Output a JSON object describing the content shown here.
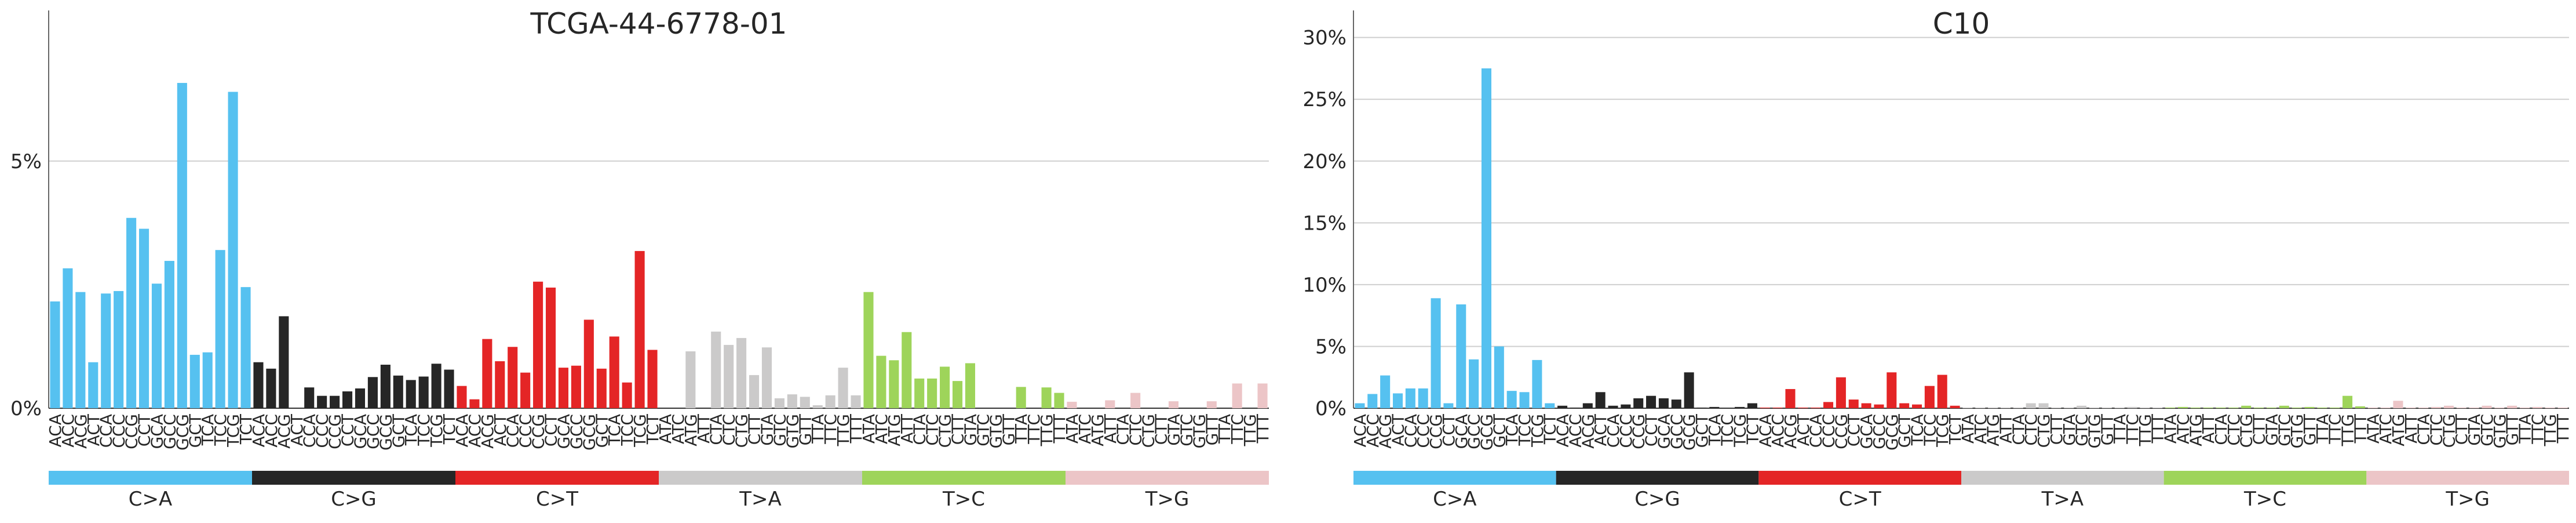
{
  "chart_data": [
    {
      "type": "bar",
      "title": "TCGA-44-6778-01",
      "ylim": [
        0,
        0.08
      ],
      "yticks": [
        0,
        0.05
      ],
      "ytick_labels": [
        "0%",
        "5%"
      ],
      "grid": true,
      "categories": [
        "ACA",
        "ACC",
        "ACG",
        "ACT",
        "CCA",
        "CCC",
        "CCG",
        "CCT",
        "GCA",
        "GCC",
        "GCG",
        "GCT",
        "TCA",
        "TCC",
        "TCG",
        "TCT",
        "ACA",
        "ACC",
        "ACG",
        "ACT",
        "CCA",
        "CCC",
        "CCG",
        "CCT",
        "GCA",
        "GCC",
        "GCG",
        "GCT",
        "TCA",
        "TCC",
        "TCG",
        "TCT",
        "ACA",
        "ACC",
        "ACG",
        "ACT",
        "CCA",
        "CCC",
        "CCG",
        "CCT",
        "GCA",
        "GCC",
        "GCG",
        "GCT",
        "TCA",
        "TCC",
        "TCG",
        "TCT",
        "ATA",
        "ATC",
        "ATG",
        "ATT",
        "CTA",
        "CTC",
        "CTG",
        "CTT",
        "GTA",
        "GTC",
        "GTG",
        "GTT",
        "TTA",
        "TTC",
        "TTG",
        "TTT",
        "ATA",
        "ATC",
        "ATG",
        "ATT",
        "CTA",
        "CTC",
        "CTG",
        "CTT",
        "GTA",
        "GTC",
        "GTG",
        "GTT",
        "TTA",
        "TTC",
        "TTG",
        "TTT",
        "ATA",
        "ATC",
        "ATG",
        "ATT",
        "CTA",
        "CTC",
        "CTG",
        "CTT",
        "GTA",
        "GTC",
        "GTG",
        "GTT",
        "TTA",
        "TTC",
        "TTG",
        "TTT"
      ],
      "values": [
        0.0216,
        0.0283,
        0.0235,
        0.0093,
        0.0232,
        0.0237,
        0.0385,
        0.0363,
        0.0252,
        0.0298,
        0.0658,
        0.0108,
        0.0113,
        0.032,
        0.064,
        0.0245,
        0.0093,
        0.008,
        0.0186,
        0,
        0.0042,
        0.0025,
        0.0025,
        0.0034,
        0.004,
        0.0063,
        0.0088,
        0.0066,
        0.0057,
        0.0064,
        0.009,
        0.0078,
        0.0045,
        0.0018,
        0.014,
        0.0095,
        0.0124,
        0.0072,
        0.0256,
        0.0244,
        0.0082,
        0.0086,
        0.0179,
        0.008,
        0.0145,
        0.0052,
        0.0318,
        0.0118,
        0,
        0,
        0.0115,
        0,
        0.0155,
        0.0128,
        0.0142,
        0.0067,
        0.0123,
        0.002,
        0.0028,
        0.0023,
        0.0006,
        0.0026,
        0.0082,
        0.0026,
        0.0235,
        0.0106,
        0.0097,
        0.0154,
        0.006,
        0.006,
        0.0084,
        0.0055,
        0.0091,
        0,
        0,
        0,
        0.0043,
        0,
        0.0042,
        0.0031,
        0.0013,
        0,
        0,
        0.0016,
        0,
        0.0031,
        0,
        0,
        0.0014,
        0,
        0,
        0.0014,
        0,
        0.005,
        0,
        0.005
      ],
      "groups": [
        {
          "label": "C>A",
          "color": "#56c1f0"
        },
        {
          "label": "C>G",
          "color": "#262626"
        },
        {
          "label": "C>T",
          "color": "#e42526"
        },
        {
          "label": "T>A",
          "color": "#cbcaca"
        },
        {
          "label": "T>C",
          "color": "#9ed45a"
        },
        {
          "label": "T>G",
          "color": "#ecc5c7"
        }
      ]
    },
    {
      "type": "bar",
      "title": "C10",
      "ylim": [
        0,
        0.32
      ],
      "yticks": [
        0,
        0.05,
        0.1,
        0.15,
        0.2,
        0.25,
        0.3
      ],
      "ytick_labels": [
        "0%",
        "5%",
        "10%",
        "15%",
        "20%",
        "25%",
        "30%"
      ],
      "grid": true,
      "categories": [
        "ACA",
        "ACC",
        "ACG",
        "ACT",
        "CCA",
        "CCC",
        "CCG",
        "CCT",
        "GCA",
        "GCC",
        "GCG",
        "GCT",
        "TCA",
        "TCC",
        "TCG",
        "TCT",
        "ACA",
        "ACC",
        "ACG",
        "ACT",
        "CCA",
        "CCC",
        "CCG",
        "CCT",
        "GCA",
        "GCC",
        "GCG",
        "GCT",
        "TCA",
        "TCC",
        "TCG",
        "TCT",
        "ACA",
        "ACC",
        "ACG",
        "ACT",
        "CCA",
        "CCC",
        "CCG",
        "CCT",
        "GCA",
        "GCC",
        "GCG",
        "GCT",
        "TCA",
        "TCC",
        "TCG",
        "TCT",
        "ATA",
        "ATC",
        "ATG",
        "ATT",
        "CTA",
        "CTC",
        "CTG",
        "CTT",
        "GTA",
        "GTC",
        "GTG",
        "GTT",
        "TTA",
        "TTC",
        "TTG",
        "TTT",
        "ATA",
        "ATC",
        "ATG",
        "ATT",
        "CTA",
        "CTC",
        "CTG",
        "CTT",
        "GTA",
        "GTC",
        "GTG",
        "GTT",
        "TTA",
        "TTC",
        "TTG",
        "TTT",
        "ATA",
        "ATC",
        "ATG",
        "ATT",
        "CTA",
        "CTC",
        "CTG",
        "CTT",
        "GTA",
        "GTC",
        "GTG",
        "GTT",
        "TTA",
        "TTC",
        "TTG",
        "TTT"
      ],
      "values": [
        0.004,
        0.0115,
        0.0265,
        0.012,
        0.016,
        0.016,
        0.089,
        0.004,
        0.084,
        0.0395,
        0.275,
        0.05,
        0.014,
        0.013,
        0.039,
        0.004,
        0.002,
        0.0005,
        0.004,
        0.013,
        0.002,
        0.003,
        0.008,
        0.01,
        0.008,
        0.007,
        0.029,
        0.0005,
        0.001,
        0,
        0.001,
        0.004,
        0.0005,
        0.0005,
        0.0155,
        0.0005,
        0.0005,
        0.005,
        0.025,
        0.007,
        0.004,
        0.003,
        0.029,
        0.004,
        0.003,
        0.018,
        0.027,
        0.002,
        0.0005,
        0.0005,
        0.0005,
        0.0005,
        0.0005,
        0.004,
        0.004,
        0.0005,
        0.0005,
        0.002,
        0.0005,
        0.0005,
        0.0005,
        0.001,
        0.0005,
        0.0005,
        0.0005,
        0.001,
        0.0005,
        0.0005,
        0.0005,
        0.0005,
        0.002,
        0.0005,
        0.0005,
        0.002,
        0.0005,
        0.001,
        0.0005,
        0.0005,
        0.01,
        0.0015,
        0.0005,
        0.0005,
        0.006,
        0.0005,
        0.0005,
        0.001,
        0.002,
        0.0005,
        0.0005,
        0.002,
        0.0005,
        0.002,
        0.0005,
        0.001,
        0.0005,
        0.0005
      ]
    }
  ]
}
